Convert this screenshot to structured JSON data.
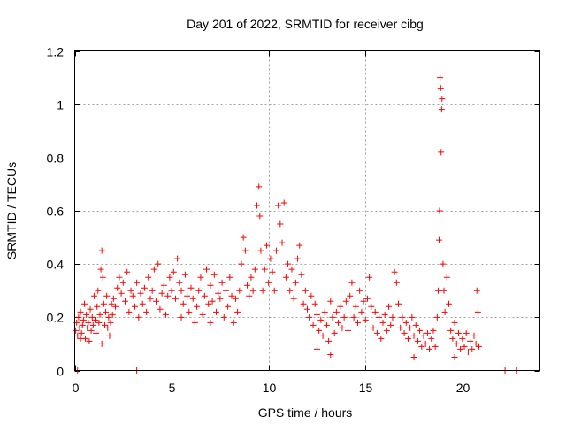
{
  "chart_data": {
    "type": "scatter",
    "title": "Day 201 of 2022, SRMTID for receiver cibg",
    "xlabel": "GPS time / hours",
    "ylabel": "SRMTID / TECUs",
    "xlim": [
      0,
      24
    ],
    "ylim": [
      0,
      1.2
    ],
    "x_ticks": [
      0,
      5,
      10,
      15,
      20
    ],
    "x_tick_labels": [
      "0",
      "5",
      "10",
      "15",
      "20"
    ],
    "y_ticks": [
      0,
      0.2,
      0.4,
      0.6,
      0.8,
      1,
      1.2
    ],
    "y_tick_labels": [
      "0",
      "0.2",
      "0.4",
      "0.6",
      "0.8",
      "1",
      "1.2"
    ],
    "grid": true,
    "marker": "+",
    "color": "#ff0000",
    "series": [
      {
        "name": "SRMTID",
        "points": [
          [
            0.05,
            0.15
          ],
          [
            0.1,
            0.18
          ],
          [
            0.15,
            0.13
          ],
          [
            0.2,
            0.2
          ],
          [
            0.25,
            0.16
          ],
          [
            0.3,
            0.22
          ],
          [
            0.35,
            0.14
          ],
          [
            0.4,
            0.17
          ],
          [
            0.45,
            0.19
          ],
          [
            0.5,
            0.25
          ],
          [
            0.55,
            0.12
          ],
          [
            0.6,
            0.21
          ],
          [
            0.65,
            0.16
          ],
          [
            0.7,
            0.18
          ],
          [
            0.75,
            0.11
          ],
          [
            0.8,
            0.23
          ],
          [
            0.85,
            0.15
          ],
          [
            0.9,
            0.2
          ],
          [
            0.95,
            0.17
          ],
          [
            1.0,
            0.28
          ],
          [
            1.05,
            0.19
          ],
          [
            1.1,
            0.14
          ],
          [
            1.15,
            0.24
          ],
          [
            1.2,
            0.3
          ],
          [
            1.25,
            0.18
          ],
          [
            1.3,
            0.21
          ],
          [
            1.35,
            0.38
          ],
          [
            1.4,
            0.45
          ],
          [
            1.45,
            0.35
          ],
          [
            1.5,
            0.25
          ],
          [
            1.55,
            0.17
          ],
          [
            1.6,
            0.22
          ],
          [
            1.65,
            0.28
          ],
          [
            1.7,
            0.16
          ],
          [
            1.75,
            0.2
          ],
          [
            1.8,
            0.13
          ],
          [
            1.85,
            0.18
          ],
          [
            1.9,
            0.25
          ],
          [
            1.95,
            0.21
          ],
          [
            2.0,
            0.27
          ],
          [
            2.1,
            0.24
          ],
          [
            2.2,
            0.31
          ],
          [
            2.3,
            0.35
          ],
          [
            2.4,
            0.29
          ],
          [
            2.5,
            0.33
          ],
          [
            2.6,
            0.26
          ],
          [
            2.7,
            0.37
          ],
          [
            2.8,
            0.22
          ],
          [
            2.9,
            0.3
          ],
          [
            3.0,
            0.28
          ],
          [
            3.1,
            0.24
          ],
          [
            3.2,
            0.33
          ],
          [
            3.3,
            0.2
          ],
          [
            3.4,
            0.29
          ],
          [
            3.5,
            0.25
          ],
          [
            3.6,
            0.31
          ],
          [
            3.7,
            0.22
          ],
          [
            3.8,
            0.35
          ],
          [
            3.9,
            0.27
          ],
          [
            4.0,
            0.3
          ],
          [
            4.1,
            0.38
          ],
          [
            4.2,
            0.26
          ],
          [
            4.3,
            0.4
          ],
          [
            4.4,
            0.23
          ],
          [
            4.5,
            0.29
          ],
          [
            4.6,
            0.32
          ],
          [
            4.7,
            0.21
          ],
          [
            4.8,
            0.28
          ],
          [
            4.9,
            0.35
          ],
          [
            5.0,
            0.3
          ],
          [
            5.1,
            0.37
          ],
          [
            5.2,
            0.27
          ],
          [
            5.3,
            0.42
          ],
          [
            5.4,
            0.33
          ],
          [
            5.5,
            0.3
          ],
          [
            5.6,
            0.25
          ],
          [
            5.7,
            0.36
          ],
          [
            5.8,
            0.28
          ],
          [
            5.9,
            0.22
          ],
          [
            6.0,
            0.31
          ],
          [
            6.1,
            0.27
          ],
          [
            6.2,
            0.18
          ],
          [
            6.3,
            0.24
          ],
          [
            6.4,
            0.3
          ],
          [
            6.5,
            0.35
          ],
          [
            6.6,
            0.21
          ],
          [
            6.7,
            0.28
          ],
          [
            6.8,
            0.38
          ],
          [
            6.9,
            0.25
          ],
          [
            7.0,
            0.32
          ],
          [
            7.1,
            0.26
          ],
          [
            7.2,
            0.36
          ],
          [
            7.3,
            0.22
          ],
          [
            7.4,
            0.29
          ],
          [
            7.5,
            0.27
          ],
          [
            7.6,
            0.33
          ],
          [
            7.7,
            0.2
          ],
          [
            7.8,
            0.3
          ],
          [
            7.9,
            0.24
          ],
          [
            8.0,
            0.35
          ],
          [
            8.1,
            0.28
          ],
          [
            8.2,
            0.18
          ],
          [
            8.3,
            0.27
          ],
          [
            8.4,
            0.22
          ],
          [
            8.5,
            0.3
          ],
          [
            8.6,
            0.4
          ],
          [
            8.7,
            0.5
          ],
          [
            8.8,
            0.45
          ],
          [
            8.9,
            0.32
          ],
          [
            9.0,
            0.28
          ],
          [
            9.1,
            0.35
          ],
          [
            9.2,
            0.3
          ],
          [
            9.3,
            0.38
          ],
          [
            9.4,
            0.62
          ],
          [
            9.5,
            0.69
          ],
          [
            9.55,
            0.58
          ],
          [
            9.6,
            0.45
          ],
          [
            9.7,
            0.3
          ],
          [
            9.8,
            0.38
          ],
          [
            9.9,
            0.47
          ],
          [
            10.0,
            0.33
          ],
          [
            10.1,
            0.42
          ],
          [
            10.2,
            0.37
          ],
          [
            10.3,
            0.3
          ],
          [
            10.4,
            0.45
          ],
          [
            10.5,
            0.62
          ],
          [
            10.6,
            0.55
          ],
          [
            10.7,
            0.48
          ],
          [
            10.8,
            0.63
          ],
          [
            10.9,
            0.35
          ],
          [
            11.0,
            0.4
          ],
          [
            11.1,
            0.3
          ],
          [
            11.2,
            0.38
          ],
          [
            11.3,
            0.27
          ],
          [
            11.4,
            0.33
          ],
          [
            11.5,
            0.42
          ],
          [
            11.6,
            0.47
          ],
          [
            11.7,
            0.36
          ],
          [
            11.8,
            0.25
          ],
          [
            11.9,
            0.3
          ],
          [
            12.0,
            0.23
          ],
          [
            12.1,
            0.2
          ],
          [
            12.2,
            0.28
          ],
          [
            12.3,
            0.17
          ],
          [
            12.4,
            0.25
          ],
          [
            12.5,
            0.21
          ],
          [
            12.6,
            0.15
          ],
          [
            12.7,
            0.19
          ],
          [
            12.8,
            0.13
          ],
          [
            12.9,
            0.22
          ],
          [
            13.0,
            0.17
          ],
          [
            13.1,
            0.11
          ],
          [
            13.2,
            0.26
          ],
          [
            13.3,
            0.2
          ],
          [
            13.4,
            0.14
          ],
          [
            13.5,
            0.22
          ],
          [
            13.6,
            0.18
          ],
          [
            13.7,
            0.24
          ],
          [
            13.8,
            0.16
          ],
          [
            13.9,
            0.2
          ],
          [
            14.0,
            0.26
          ],
          [
            14.1,
            0.15
          ],
          [
            14.2,
            0.28
          ],
          [
            14.3,
            0.33
          ],
          [
            14.4,
            0.2
          ],
          [
            14.5,
            0.24
          ],
          [
            14.6,
            0.18
          ],
          [
            14.7,
            0.3
          ],
          [
            14.8,
            0.22
          ],
          [
            14.9,
            0.26
          ],
          [
            15.0,
            0.19
          ],
          [
            15.1,
            0.27
          ],
          [
            15.2,
            0.35
          ],
          [
            15.3,
            0.24
          ],
          [
            15.4,
            0.16
          ],
          [
            15.5,
            0.22
          ],
          [
            15.6,
            0.14
          ],
          [
            15.7,
            0.2
          ],
          [
            15.8,
            0.12
          ],
          [
            15.9,
            0.18
          ],
          [
            16.0,
            0.21
          ],
          [
            16.1,
            0.15
          ],
          [
            16.2,
            0.24
          ],
          [
            16.3,
            0.17
          ],
          [
            16.4,
            0.2
          ],
          [
            16.5,
            0.37
          ],
          [
            16.6,
            0.33
          ],
          [
            16.7,
            0.25
          ],
          [
            16.8,
            0.16
          ],
          [
            16.9,
            0.2
          ],
          [
            17.0,
            0.14
          ],
          [
            17.1,
            0.18
          ],
          [
            17.2,
            0.12
          ],
          [
            17.3,
            0.16
          ],
          [
            17.4,
            0.2
          ],
          [
            17.5,
            0.13
          ],
          [
            17.6,
            0.17
          ],
          [
            17.7,
            0.11
          ],
          [
            17.8,
            0.15
          ],
          [
            17.9,
            0.09
          ],
          [
            18.0,
            0.13
          ],
          [
            18.1,
            0.1
          ],
          [
            18.2,
            0.14
          ],
          [
            18.3,
            0.08
          ],
          [
            18.4,
            0.12
          ],
          [
            18.5,
            0.15
          ],
          [
            18.6,
            0.09
          ],
          [
            18.7,
            0.2
          ],
          [
            18.75,
            0.3
          ],
          [
            18.8,
            0.49
          ],
          [
            18.82,
            0.6
          ],
          [
            18.85,
            1.1
          ],
          [
            18.88,
            1.06
          ],
          [
            18.9,
            0.82
          ],
          [
            18.93,
            0.98
          ],
          [
            18.95,
            1.02
          ],
          [
            19.0,
            0.4
          ],
          [
            19.05,
            0.3
          ],
          [
            19.1,
            0.22
          ],
          [
            19.2,
            0.35
          ],
          [
            19.3,
            0.25
          ],
          [
            19.4,
            0.15
          ],
          [
            19.5,
            0.12
          ],
          [
            19.6,
            0.18
          ],
          [
            19.7,
            0.1
          ],
          [
            19.8,
            0.14
          ],
          [
            19.9,
            0.08
          ],
          [
            20.0,
            0.12
          ],
          [
            20.1,
            0.09
          ],
          [
            20.2,
            0.14
          ],
          [
            20.3,
            0.07
          ],
          [
            20.4,
            0.11
          ],
          [
            20.5,
            0.08
          ],
          [
            20.6,
            0.13
          ],
          [
            20.7,
            0.1
          ],
          [
            20.75,
            0.3
          ],
          [
            20.8,
            0.22
          ],
          [
            20.85,
            0.09
          ],
          [
            22.2,
            0.0
          ],
          [
            22.8,
            0.0
          ],
          [
            0.15,
            0.0
          ],
          [
            3.2,
            0.0
          ],
          [
            0.3,
            0.12
          ],
          [
            1.4,
            0.1
          ],
          [
            5.5,
            0.2
          ],
          [
            7.0,
            0.18
          ],
          [
            12.5,
            0.08
          ],
          [
            13.2,
            0.06
          ],
          [
            17.5,
            0.05
          ],
          [
            19.6,
            0.05
          ]
        ]
      }
    ]
  }
}
